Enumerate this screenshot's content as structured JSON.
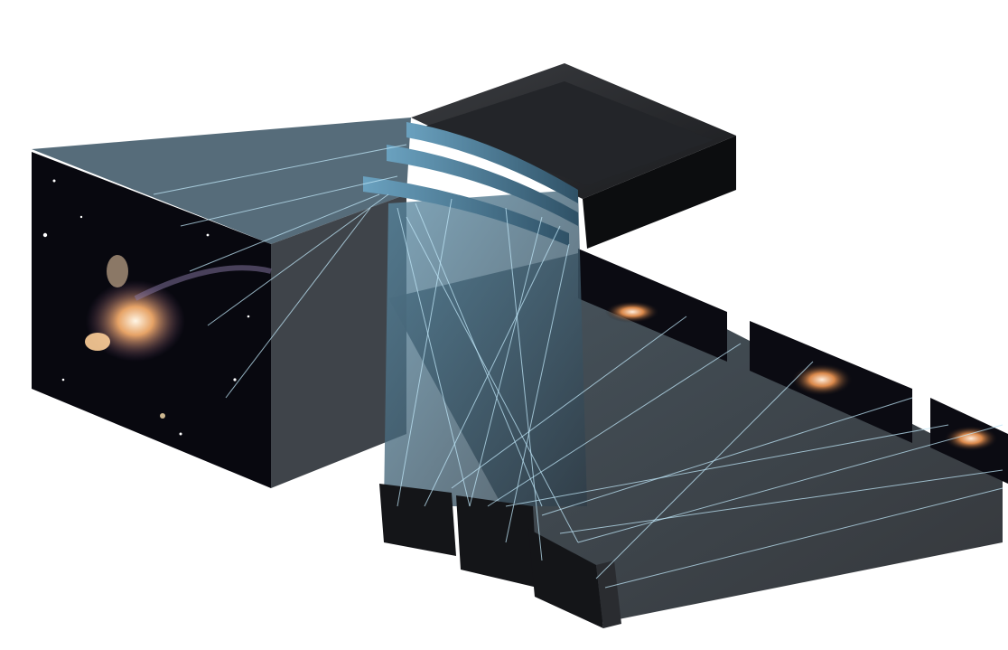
{
  "figure": {
    "subject": "integral-field-spectrograph-optics",
    "palette": {
      "background": "#ffffff",
      "housing_dark": "#111214",
      "housing_mid": "#2b2d31",
      "beam_blue": "#4f7f99",
      "beam_gray": "#3a3d42",
      "ray_line": "#bfe6f7",
      "galaxy_core": "#ffe9c8",
      "galaxy_glow": "#ff9a4a",
      "space_bg": "#0a0a12"
    },
    "components": {
      "input_image": {
        "icon": "galaxy-field-icon"
      },
      "slicer_mirror_stack": {
        "count": 3,
        "icon": "image-slicer-icon"
      },
      "pupil_mirrors": {
        "count": 3,
        "icon": "pupil-mirror-icon"
      },
      "output_slices": {
        "count": 3,
        "icon": "galaxy-slice-icon"
      }
    }
  }
}
